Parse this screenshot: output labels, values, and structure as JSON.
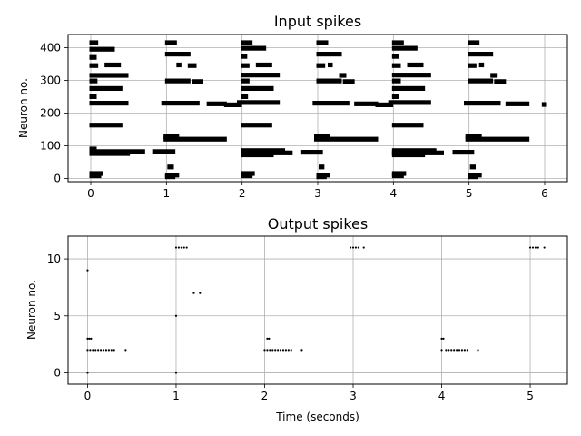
{
  "chart_data": [
    {
      "type": "scatter",
      "title": "Input spikes",
      "xlabel": "",
      "ylabel": "Neuron no.",
      "xlim": [
        -0.3,
        6.3
      ],
      "ylim": [
        -10,
        440
      ],
      "xticks": [
        0,
        1,
        2,
        3,
        4,
        5,
        6
      ],
      "yticks": [
        0,
        100,
        200,
        300,
        400
      ],
      "grid": true,
      "marker_color": "#000000",
      "spike_runs": [
        {
          "neuron": 415,
          "start": 0.0,
          "end": 0.08
        },
        {
          "neuron": 395,
          "start": 0.0,
          "end": 0.3
        },
        {
          "neuron": 370,
          "start": 0.0,
          "end": 0.06
        },
        {
          "neuron": 347,
          "start": 0.2,
          "end": 0.38
        },
        {
          "neuron": 345,
          "start": 0.0,
          "end": 0.08
        },
        {
          "neuron": 315,
          "start": 0.0,
          "end": 0.48
        },
        {
          "neuron": 298,
          "start": 0.0,
          "end": 0.07
        },
        {
          "neuron": 275,
          "start": 0.0,
          "end": 0.4
        },
        {
          "neuron": 250,
          "start": 0.0,
          "end": 0.06
        },
        {
          "neuron": 230,
          "start": 0.0,
          "end": 0.48
        },
        {
          "neuron": 163,
          "start": 0.0,
          "end": 0.4
        },
        {
          "neuron": 90,
          "start": 0.0,
          "end": 0.06
        },
        {
          "neuron": 82,
          "start": 0.0,
          "end": 0.7
        },
        {
          "neuron": 76,
          "start": 0.0,
          "end": 0.5
        },
        {
          "neuron": 15,
          "start": 0.0,
          "end": 0.15
        },
        {
          "neuron": 8,
          "start": 0.0,
          "end": 0.12
        },
        {
          "neuron": 82,
          "start": 0.83,
          "end": 1.1
        },
        {
          "neuron": 415,
          "start": 1.0,
          "end": 1.12
        },
        {
          "neuron": 380,
          "start": 1.0,
          "end": 1.3
        },
        {
          "neuron": 347,
          "start": 1.15,
          "end": 1.18
        },
        {
          "neuron": 345,
          "start": 1.3,
          "end": 1.38
        },
        {
          "neuron": 298,
          "start": 1.0,
          "end": 1.3
        },
        {
          "neuron": 296,
          "start": 1.35,
          "end": 1.47
        },
        {
          "neuron": 230,
          "start": 0.95,
          "end": 1.42
        },
        {
          "neuron": 228,
          "start": 1.55,
          "end": 1.78
        },
        {
          "neuron": 128,
          "start": 0.98,
          "end": 1.15
        },
        {
          "neuron": 120,
          "start": 0.98,
          "end": 1.78
        },
        {
          "neuron": 35,
          "start": 1.03,
          "end": 1.08
        },
        {
          "neuron": 10,
          "start": 1.0,
          "end": 1.15
        },
        {
          "neuron": 5,
          "start": 1.0,
          "end": 1.1
        },
        {
          "neuron": 415,
          "start": 2.0,
          "end": 2.12
        },
        {
          "neuron": 398,
          "start": 2.0,
          "end": 2.3
        },
        {
          "neuron": 373,
          "start": 2.0,
          "end": 2.05
        },
        {
          "neuron": 347,
          "start": 2.2,
          "end": 2.38
        },
        {
          "neuron": 345,
          "start": 2.0,
          "end": 2.08
        },
        {
          "neuron": 316,
          "start": 2.0,
          "end": 2.48
        },
        {
          "neuron": 298,
          "start": 2.0,
          "end": 2.08
        },
        {
          "neuron": 275,
          "start": 2.0,
          "end": 2.4
        },
        {
          "neuron": 250,
          "start": 2.0,
          "end": 2.06
        },
        {
          "neuron": 232,
          "start": 1.95,
          "end": 2.48
        },
        {
          "neuron": 225,
          "start": 1.78,
          "end": 1.98
        },
        {
          "neuron": 163,
          "start": 2.0,
          "end": 2.38
        },
        {
          "neuron": 85,
          "start": 2.0,
          "end": 2.55
        },
        {
          "neuron": 78,
          "start": 2.0,
          "end": 2.65
        },
        {
          "neuron": 72,
          "start": 2.0,
          "end": 2.4
        },
        {
          "neuron": 80,
          "start": 2.8,
          "end": 3.05
        },
        {
          "neuron": 15,
          "start": 2.0,
          "end": 2.15
        },
        {
          "neuron": 8,
          "start": 2.0,
          "end": 2.12
        },
        {
          "neuron": 415,
          "start": 3.0,
          "end": 3.12
        },
        {
          "neuron": 380,
          "start": 3.0,
          "end": 3.3
        },
        {
          "neuron": 347,
          "start": 3.15,
          "end": 3.18
        },
        {
          "neuron": 345,
          "start": 3.0,
          "end": 3.08
        },
        {
          "neuron": 315,
          "start": 3.3,
          "end": 3.36
        },
        {
          "neuron": 298,
          "start": 3.0,
          "end": 3.3
        },
        {
          "neuron": 296,
          "start": 3.35,
          "end": 3.47
        },
        {
          "neuron": 230,
          "start": 2.95,
          "end": 3.4
        },
        {
          "neuron": 228,
          "start": 3.5,
          "end": 3.78
        },
        {
          "neuron": 128,
          "start": 2.97,
          "end": 3.15
        },
        {
          "neuron": 120,
          "start": 2.97,
          "end": 3.78
        },
        {
          "neuron": 35,
          "start": 3.03,
          "end": 3.07
        },
        {
          "neuron": 10,
          "start": 3.0,
          "end": 3.15
        },
        {
          "neuron": 5,
          "start": 3.0,
          "end": 3.1
        },
        {
          "neuron": 415,
          "start": 4.0,
          "end": 4.12
        },
        {
          "neuron": 398,
          "start": 4.0,
          "end": 4.3
        },
        {
          "neuron": 373,
          "start": 4.0,
          "end": 4.05
        },
        {
          "neuron": 347,
          "start": 4.2,
          "end": 4.38
        },
        {
          "neuron": 345,
          "start": 4.0,
          "end": 4.08
        },
        {
          "neuron": 316,
          "start": 4.0,
          "end": 4.48
        },
        {
          "neuron": 298,
          "start": 4.0,
          "end": 4.08
        },
        {
          "neuron": 275,
          "start": 4.0,
          "end": 4.4
        },
        {
          "neuron": 250,
          "start": 4.0,
          "end": 4.06
        },
        {
          "neuron": 232,
          "start": 3.95,
          "end": 4.48
        },
        {
          "neuron": 225,
          "start": 3.78,
          "end": 3.98
        },
        {
          "neuron": 163,
          "start": 4.0,
          "end": 4.38
        },
        {
          "neuron": 85,
          "start": 4.0,
          "end": 4.55
        },
        {
          "neuron": 78,
          "start": 4.0,
          "end": 4.65
        },
        {
          "neuron": 72,
          "start": 4.0,
          "end": 4.4
        },
        {
          "neuron": 80,
          "start": 4.8,
          "end": 5.05
        },
        {
          "neuron": 15,
          "start": 4.0,
          "end": 4.15
        },
        {
          "neuron": 8,
          "start": 4.0,
          "end": 4.12
        },
        {
          "neuron": 415,
          "start": 5.0,
          "end": 5.12
        },
        {
          "neuron": 380,
          "start": 5.0,
          "end": 5.3
        },
        {
          "neuron": 347,
          "start": 5.15,
          "end": 5.18
        },
        {
          "neuron": 345,
          "start": 5.0,
          "end": 5.08
        },
        {
          "neuron": 315,
          "start": 5.3,
          "end": 5.36
        },
        {
          "neuron": 298,
          "start": 5.0,
          "end": 5.3
        },
        {
          "neuron": 296,
          "start": 5.35,
          "end": 5.47
        },
        {
          "neuron": 230,
          "start": 4.95,
          "end": 5.4
        },
        {
          "neuron": 228,
          "start": 5.5,
          "end": 5.78
        },
        {
          "neuron": 226,
          "start": 5.98,
          "end": 6.0
        },
        {
          "neuron": 128,
          "start": 4.97,
          "end": 5.15
        },
        {
          "neuron": 120,
          "start": 4.97,
          "end": 5.78
        },
        {
          "neuron": 35,
          "start": 5.03,
          "end": 5.07
        },
        {
          "neuron": 10,
          "start": 5.0,
          "end": 5.15
        },
        {
          "neuron": 5,
          "start": 5.0,
          "end": 5.1
        }
      ]
    },
    {
      "type": "scatter",
      "title": "Output spikes",
      "xlabel": "Time (seconds)",
      "ylabel": "Neuron no.",
      "xlim": [
        -0.22,
        5.42
      ],
      "ylim": [
        -1.0,
        12.0
      ],
      "xticks": [
        0,
        1,
        2,
        3,
        4,
        5
      ],
      "yticks": [
        0,
        5,
        10
      ],
      "grid": true,
      "marker_color": "#000000",
      "points": [
        {
          "x": 0.0,
          "y": 0
        },
        {
          "x": 0.0,
          "y": 9
        },
        {
          "x": 0.0,
          "y": 3
        },
        {
          "x": 0.02,
          "y": 3
        },
        {
          "x": 0.04,
          "y": 3
        },
        {
          "x": 0.0,
          "y": 2
        },
        {
          "x": 0.03,
          "y": 2
        },
        {
          "x": 0.06,
          "y": 2
        },
        {
          "x": 0.09,
          "y": 2
        },
        {
          "x": 0.12,
          "y": 2
        },
        {
          "x": 0.15,
          "y": 2
        },
        {
          "x": 0.18,
          "y": 2
        },
        {
          "x": 0.21,
          "y": 2
        },
        {
          "x": 0.24,
          "y": 2
        },
        {
          "x": 0.27,
          "y": 2
        },
        {
          "x": 0.3,
          "y": 2
        },
        {
          "x": 0.43,
          "y": 2
        },
        {
          "x": 1.0,
          "y": 0
        },
        {
          "x": 1.0,
          "y": 5
        },
        {
          "x": 1.0,
          "y": 11
        },
        {
          "x": 1.03,
          "y": 11
        },
        {
          "x": 1.06,
          "y": 11
        },
        {
          "x": 1.09,
          "y": 11
        },
        {
          "x": 1.12,
          "y": 11
        },
        {
          "x": 1.2,
          "y": 7
        },
        {
          "x": 1.27,
          "y": 7
        },
        {
          "x": 2.03,
          "y": 3
        },
        {
          "x": 2.05,
          "y": 3
        },
        {
          "x": 2.0,
          "y": 2
        },
        {
          "x": 2.03,
          "y": 2
        },
        {
          "x": 2.06,
          "y": 2
        },
        {
          "x": 2.09,
          "y": 2
        },
        {
          "x": 2.12,
          "y": 2
        },
        {
          "x": 2.15,
          "y": 2
        },
        {
          "x": 2.18,
          "y": 2
        },
        {
          "x": 2.21,
          "y": 2
        },
        {
          "x": 2.24,
          "y": 2
        },
        {
          "x": 2.27,
          "y": 2
        },
        {
          "x": 2.3,
          "y": 2
        },
        {
          "x": 2.42,
          "y": 2
        },
        {
          "x": 2.97,
          "y": 11
        },
        {
          "x": 3.0,
          "y": 11
        },
        {
          "x": 3.03,
          "y": 11
        },
        {
          "x": 3.06,
          "y": 11
        },
        {
          "x": 3.12,
          "y": 11
        },
        {
          "x": 4.0,
          "y": 3
        },
        {
          "x": 4.02,
          "y": 3
        },
        {
          "x": 4.0,
          "y": 2
        },
        {
          "x": 4.05,
          "y": 2
        },
        {
          "x": 4.08,
          "y": 2
        },
        {
          "x": 4.11,
          "y": 2
        },
        {
          "x": 4.14,
          "y": 2
        },
        {
          "x": 4.17,
          "y": 2
        },
        {
          "x": 4.2,
          "y": 2
        },
        {
          "x": 4.23,
          "y": 2
        },
        {
          "x": 4.26,
          "y": 2
        },
        {
          "x": 4.29,
          "y": 2
        },
        {
          "x": 4.41,
          "y": 2
        },
        {
          "x": 5.0,
          "y": 11
        },
        {
          "x": 5.03,
          "y": 11
        },
        {
          "x": 5.06,
          "y": 11
        },
        {
          "x": 5.09,
          "y": 11
        },
        {
          "x": 5.16,
          "y": 11
        }
      ]
    }
  ]
}
